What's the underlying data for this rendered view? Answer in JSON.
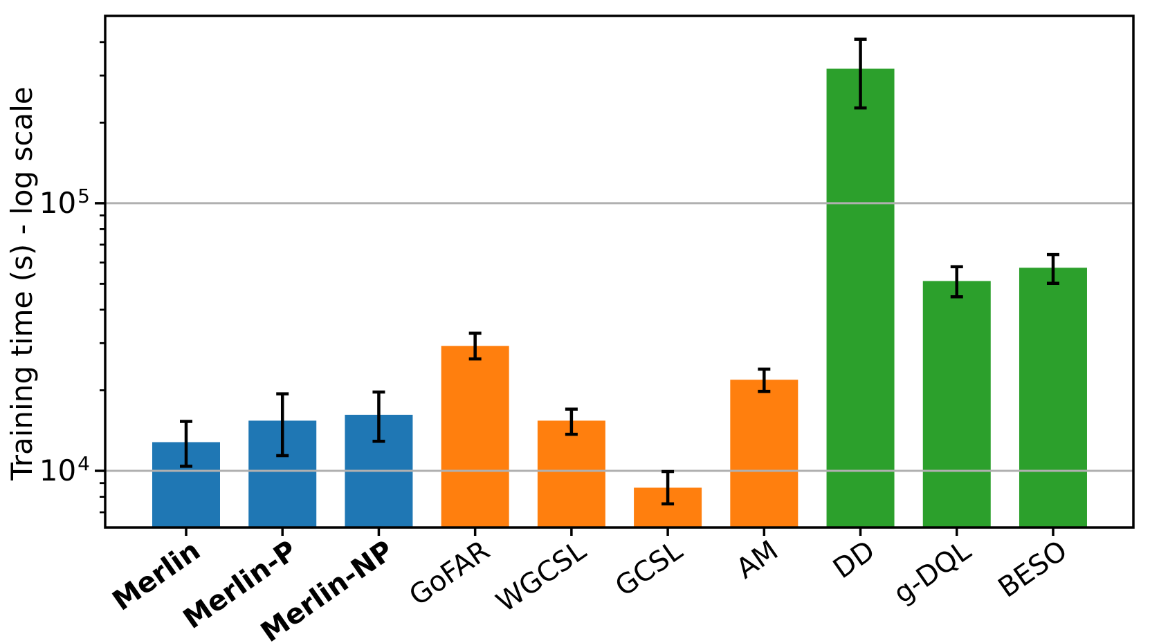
{
  "chart_data": {
    "type": "bar",
    "title": "",
    "xlabel": "",
    "ylabel": "Training time (s) - log scale",
    "yscale": "log",
    "ylim": [
      6140,
      501000
    ],
    "grid": "horizontal gridlines at major ticks, drawn over bars",
    "legend": "none",
    "background_color": "#ffffff",
    "grid_color": "#b0b0b0",
    "axis_color": "#000000",
    "error_bar_color": "#000000",
    "yticks": [
      {
        "base": "10",
        "exp": "4",
        "value": 10000
      },
      {
        "base": "10",
        "exp": "5",
        "value": 100000
      }
    ],
    "categories": [
      "Merlin",
      "Merlin-P",
      "Merlin-NP",
      "GoFAR",
      "WGCSL",
      "GCSL",
      "AM",
      "DD",
      "g-DQL",
      "BESO"
    ],
    "bold_categories": [
      "Merlin",
      "Merlin-P",
      "Merlin-NP"
    ],
    "bar_colors": [
      "#1f77b4",
      "#1f77b4",
      "#1f77b4",
      "#ff7f0e",
      "#ff7f0e",
      "#ff7f0e",
      "#ff7f0e",
      "#2ca02c",
      "#2ca02c",
      "#2ca02c"
    ],
    "series": [
      {
        "name": "Training time (s)",
        "values": [
          12800,
          15400,
          16200,
          29300,
          15400,
          8650,
          21900,
          318000,
          51200,
          57400
        ],
        "error_low": [
          10400,
          11400,
          12900,
          26200,
          13700,
          7530,
          19800,
          227000,
          44700,
          50200
        ],
        "error_high": [
          15300,
          19400,
          19700,
          32700,
          17000,
          9940,
          24000,
          410000,
          57900,
          64300
        ]
      }
    ]
  }
}
